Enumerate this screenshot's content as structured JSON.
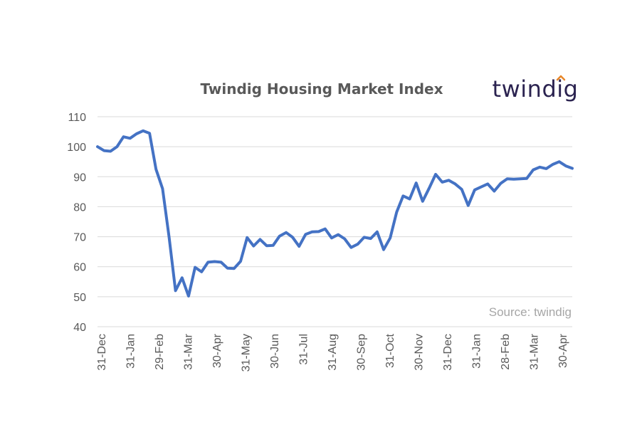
{
  "logo": {
    "text": "twindig",
    "accent_color": "#e8872a",
    "text_color": "#2b2350"
  },
  "source_note": "Source: twindig",
  "chart_data": {
    "type": "line",
    "title": "Twindig Housing Market Index",
    "xlabel": "",
    "ylabel": "",
    "ylim": [
      40,
      110
    ],
    "y_ticks": [
      40,
      50,
      60,
      70,
      80,
      90,
      100,
      110
    ],
    "x_tick_labels": [
      "31-Dec",
      "31-Jan",
      "29-Feb",
      "31-Mar",
      "30-Apr",
      "31-May",
      "30-Jun",
      "31-Jul",
      "31-Aug",
      "30-Sep",
      "31-Oct",
      "30-Nov",
      "31-Dec",
      "31-Jan",
      "28-Feb",
      "31-Mar",
      "30-Apr"
    ],
    "grid": true,
    "legend": "none",
    "series": [
      {
        "color": "#4472c4",
        "values": [
          100,
          98.7,
          98.5,
          100,
          103.3,
          102.8,
          104.3,
          105.3,
          104.5,
          92.5,
          86,
          70,
          52,
          56.3,
          50.2,
          59.8,
          58.3,
          61.5,
          61.7,
          61.5,
          59.5,
          59.4,
          61.8,
          69.7,
          66.9,
          69.1,
          67,
          67.1,
          70.2,
          71.4,
          69.8,
          66.8,
          70.8,
          71.6,
          71.7,
          72.6,
          69.6,
          70.7,
          69.3,
          66.4,
          67.5,
          69.8,
          69.4,
          71.6,
          65.7,
          69.6,
          78.2,
          83.6,
          82.6,
          87.9,
          81.8,
          86.2,
          90.8,
          88.2,
          88.8,
          87.6,
          85.8,
          80.4,
          85.6,
          86.6,
          87.6,
          85.2,
          87.8,
          89.3,
          89.2,
          89.3,
          89.4,
          92.3,
          93.2,
          92.7,
          94.1,
          95,
          93.6,
          92.8
        ]
      }
    ]
  }
}
